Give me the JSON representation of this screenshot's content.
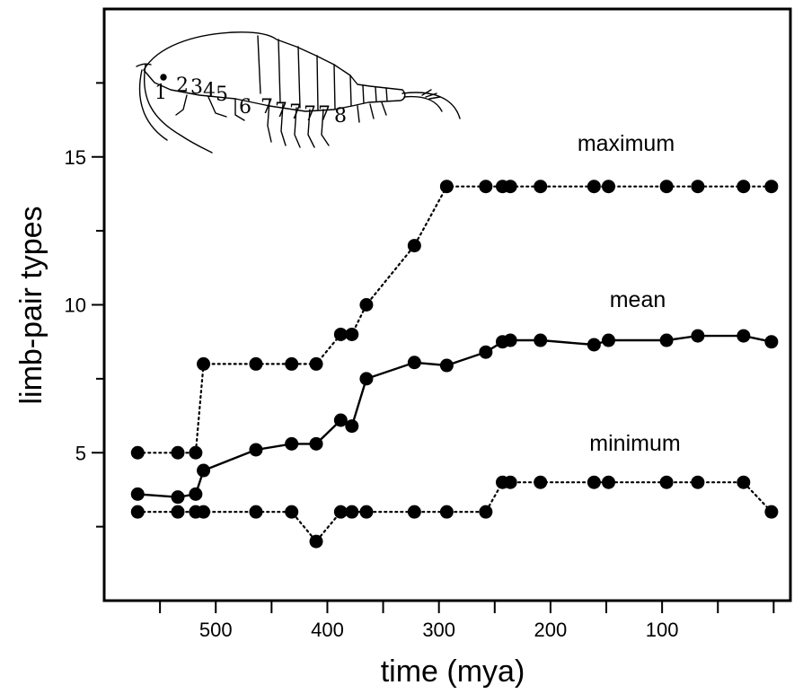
{
  "chart_data": {
    "type": "line",
    "xlabel": "time (mya)",
    "ylabel": "limb-pair types",
    "xlim": [
      600,
      -15
    ],
    "ylim": [
      0,
      20
    ],
    "x_ticks": [
      500,
      400,
      300,
      200,
      100
    ],
    "x_minor_ticks": [
      550,
      450,
      350,
      250,
      150,
      50,
      0
    ],
    "y_ticks": [
      5,
      10,
      15
    ],
    "y_minor_ticks": [
      2.5,
      7.5,
      12.5,
      17.5
    ],
    "grid": false,
    "series": [
      {
        "name": "maximum",
        "line_style": "dotted",
        "x": [
          570,
          534,
          518,
          511,
          464,
          432,
          410,
          388,
          378,
          365,
          322,
          293,
          258,
          243,
          236,
          209,
          161,
          148,
          96,
          68,
          27,
          2
        ],
        "values": [
          5,
          5,
          5,
          8,
          8,
          8,
          8,
          9,
          9,
          10,
          12,
          14,
          14,
          14,
          14,
          14,
          14,
          14,
          14,
          14,
          14,
          14
        ]
      },
      {
        "name": "mean",
        "line_style": "solid",
        "x": [
          570,
          534,
          518,
          511,
          464,
          432,
          410,
          388,
          378,
          365,
          322,
          293,
          258,
          243,
          236,
          209,
          161,
          148,
          96,
          68,
          27,
          2
        ],
        "values": [
          3.6,
          3.5,
          3.6,
          4.4,
          5.1,
          5.3,
          5.3,
          6.1,
          5.9,
          7.5,
          8.05,
          7.95,
          8.4,
          8.75,
          8.8,
          8.8,
          8.65,
          8.8,
          8.8,
          8.95,
          8.95,
          8.75
        ]
      },
      {
        "name": "minimum",
        "line_style": "dotted",
        "x": [
          570,
          534,
          518,
          511,
          464,
          432,
          410,
          388,
          378,
          365,
          322,
          293,
          258,
          243,
          236,
          209,
          161,
          148,
          96,
          68,
          27,
          2
        ],
        "values": [
          3,
          3,
          3,
          3,
          3,
          3,
          2,
          3,
          3,
          3,
          3,
          3,
          3,
          4,
          4,
          4,
          4,
          4,
          4,
          4,
          4,
          3
        ]
      }
    ],
    "inset_numbers": [
      "1",
      "2",
      "3",
      "4",
      "5",
      "6",
      "7",
      "7",
      "7",
      "7",
      "7",
      "8"
    ]
  }
}
